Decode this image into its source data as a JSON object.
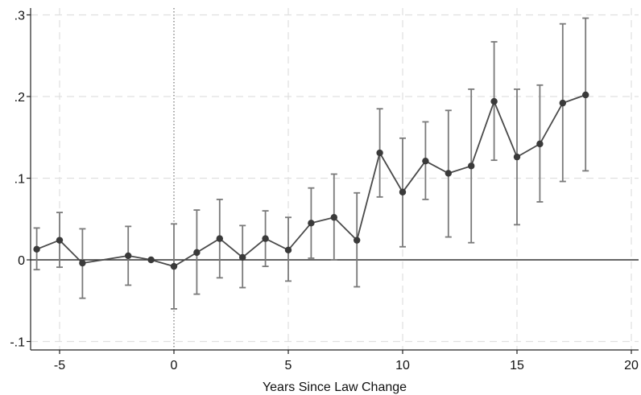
{
  "chart_data": {
    "type": "line",
    "title": "",
    "xlabel": "Years Since Law Change",
    "ylabel": "",
    "xlim": [
      -6,
      20.5
    ],
    "ylim": [
      -0.1,
      0.3
    ],
    "x_ticks": [
      -5,
      0,
      5,
      10,
      15,
      20
    ],
    "x_tick_labels": [
      "-5",
      "0",
      "5",
      "10",
      "15",
      "20"
    ],
    "y_ticks": [
      -0.1,
      0,
      0.1,
      0.2,
      0.3
    ],
    "y_tick_labels": [
      "-.1",
      "0",
      ".1",
      ".2",
      ".3"
    ],
    "grid": true,
    "reference_lines": {
      "y": 0,
      "x": 0
    },
    "series": [
      {
        "x": [
          -6,
          -5,
          -4,
          -2,
          -1,
          0,
          1,
          2,
          3,
          4,
          5,
          6,
          7,
          8,
          9,
          10,
          11,
          12,
          13,
          14,
          15,
          16,
          17,
          18
        ],
        "y": [
          0.013,
          0.024,
          -0.004,
          0.005,
          0.0,
          -0.008,
          0.009,
          0.026,
          0.003,
          0.026,
          0.012,
          0.045,
          0.052,
          0.024,
          0.131,
          0.083,
          0.121,
          0.106,
          0.115,
          0.194,
          0.126,
          0.142,
          0.192,
          0.202
        ],
        "lower": [
          -0.012,
          -0.009,
          -0.047,
          -0.031,
          0.0,
          -0.06,
          -0.042,
          -0.022,
          -0.034,
          -0.008,
          -0.026,
          0.002,
          0.0,
          -0.033,
          0.077,
          0.016,
          0.074,
          0.028,
          0.021,
          0.122,
          0.043,
          0.071,
          0.096,
          0.109
        ],
        "upper": [
          0.039,
          0.058,
          0.038,
          0.041,
          0.0,
          0.044,
          0.061,
          0.074,
          0.042,
          0.06,
          0.052,
          0.088,
          0.105,
          0.082,
          0.185,
          0.149,
          0.169,
          0.183,
          0.209,
          0.267,
          0.209,
          0.214,
          0.289,
          0.296
        ]
      }
    ],
    "colors": {
      "line": "#4a4a4a",
      "marker": "#3a3a3a",
      "error_bar": "#7a7a7a",
      "grid": "#e0e0e0",
      "axis": "#222222"
    }
  }
}
